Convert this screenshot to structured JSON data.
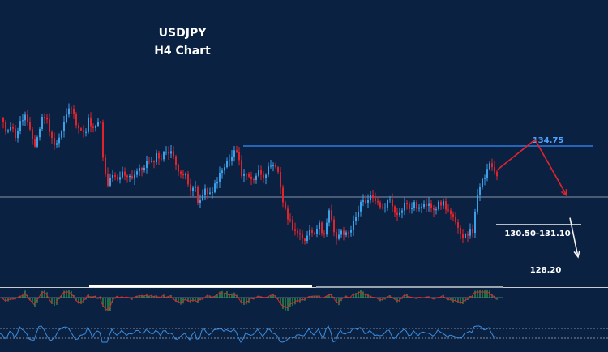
{
  "chart": {
    "title_line1": "USDJPY",
    "title_line2": "H4 Chart",
    "colors": {
      "background": "#0b2142",
      "bull": "#3aa0e8",
      "bear": "#e0242c",
      "resistance_line": "#2f7be0",
      "resistance_label": "#4fa3ff",
      "level_line": "#8a96a8",
      "support_line": "#f2f2f2",
      "arrow_red": "#e0242c",
      "arrow_white": "#f2f2f2",
      "macd_hist": "#2fa04a",
      "signal_line": "#e0242c",
      "rsi_line": "#3a8ee0",
      "separator": "#c8ccd2",
      "text": "#ffffff"
    }
  },
  "annotations": {
    "resistance_label": "134.75",
    "support_label": "130.50-131.10",
    "target_label": "128.20"
  },
  "chart_data": {
    "type": "candlestick",
    "symbol": "USDJPY",
    "timeframe": "H4",
    "ylim": [
      127.6,
      137.8
    ],
    "levels": {
      "resistance": 134.75,
      "mid": 133.0,
      "support_zone": [
        130.5,
        131.1
      ],
      "target": 128.2
    },
    "waypoints": [
      [
        0,
        136.1
      ],
      [
        6,
        135.5
      ],
      [
        12,
        135.8
      ],
      [
        18,
        135.2
      ],
      [
        24,
        135.9
      ],
      [
        30,
        136.3
      ],
      [
        36,
        135.4
      ],
      [
        42,
        134.7
      ],
      [
        48,
        135.6
      ],
      [
        52,
        136.4
      ],
      [
        58,
        135.9
      ],
      [
        63,
        135.0
      ],
      [
        68,
        134.8
      ],
      [
        74,
        135.3
      ],
      [
        80,
        136.2
      ],
      [
        86,
        136.8
      ],
      [
        92,
        136.0
      ],
      [
        97,
        135.7
      ],
      [
        103,
        135.2
      ],
      [
        108,
        136.1
      ],
      [
        113,
        135.4
      ],
      [
        118,
        135.9
      ],
      [
        124,
        135.8
      ],
      [
        126,
        134.0
      ],
      [
        128,
        133.3
      ],
      [
        132,
        132.6
      ],
      [
        138,
        133.0
      ],
      [
        144,
        132.8
      ],
      [
        150,
        133.2
      ],
      [
        156,
        133.1
      ],
      [
        162,
        133.0
      ],
      [
        168,
        133.3
      ],
      [
        174,
        133.4
      ],
      [
        180,
        133.8
      ],
      [
        186,
        133.7
      ],
      [
        192,
        134.2
      ],
      [
        198,
        134.0
      ],
      [
        204,
        134.4
      ],
      [
        210,
        134.4
      ],
      [
        216,
        133.6
      ],
      [
        222,
        133.3
      ],
      [
        228,
        133.0
      ],
      [
        234,
        132.2
      ],
      [
        240,
        132.5
      ],
      [
        244,
        131.5
      ],
      [
        248,
        132.0
      ],
      [
        254,
        132.3
      ],
      [
        260,
        131.9
      ],
      [
        264,
        132.6
      ],
      [
        270,
        133.1
      ],
      [
        276,
        133.5
      ],
      [
        280,
        133.9
      ],
      [
        284,
        133.9
      ],
      [
        288,
        134.4
      ],
      [
        292,
        134.3
      ],
      [
        296,
        133.2
      ],
      [
        300,
        133.2
      ],
      [
        306,
        133.0
      ],
      [
        312,
        132.9
      ],
      [
        318,
        133.3
      ],
      [
        324,
        133.1
      ],
      [
        330,
        133.4
      ],
      [
        336,
        133.5
      ],
      [
        342,
        133.3
      ],
      [
        346,
        132.2
      ],
      [
        350,
        131.2
      ],
      [
        356,
        130.7
      ],
      [
        362,
        130.2
      ],
      [
        368,
        129.8
      ],
      [
        374,
        129.5
      ],
      [
        380,
        130.2
      ],
      [
        386,
        130.0
      ],
      [
        392,
        130.5
      ],
      [
        398,
        129.9
      ],
      [
        402,
        130.5
      ],
      [
        406,
        131.3
      ],
      [
        410,
        130.0
      ],
      [
        414,
        129.7
      ],
      [
        418,
        130.0
      ],
      [
        424,
        129.9
      ],
      [
        430,
        130.1
      ],
      [
        436,
        130.6
      ],
      [
        440,
        131.1
      ],
      [
        444,
        131.7
      ],
      [
        450,
        131.5
      ],
      [
        456,
        131.9
      ],
      [
        462,
        131.8
      ],
      [
        468,
        131.3
      ],
      [
        474,
        131.5
      ],
      [
        480,
        131.8
      ],
      [
        486,
        131.2
      ],
      [
        492,
        131.0
      ],
      [
        498,
        131.6
      ],
      [
        504,
        131.3
      ],
      [
        510,
        131.5
      ],
      [
        516,
        131.3
      ],
      [
        522,
        131.4
      ],
      [
        528,
        131.7
      ],
      [
        534,
        131.3
      ],
      [
        540,
        131.5
      ],
      [
        546,
        131.6
      ],
      [
        550,
        131.3
      ],
      [
        556,
        130.9
      ],
      [
        562,
        130.4
      ],
      [
        566,
        129.8
      ],
      [
        570,
        129.9
      ],
      [
        576,
        130.0
      ],
      [
        582,
        130.1
      ],
      [
        586,
        131.6
      ],
      [
        590,
        132.2
      ],
      [
        594,
        132.8
      ],
      [
        598,
        133.1
      ],
      [
        602,
        133.6
      ],
      [
        606,
        133.5
      ],
      [
        610,
        133.3
      ],
      [
        614,
        132.9
      ]
    ],
    "projection": {
      "red_path": [
        [
          614,
          133.4
        ],
        [
          660,
          135.0
        ],
        [
          699,
          132.0
        ]
      ],
      "white_path": [
        [
          703,
          130.8
        ],
        [
          713,
          128.7
        ]
      ]
    }
  }
}
